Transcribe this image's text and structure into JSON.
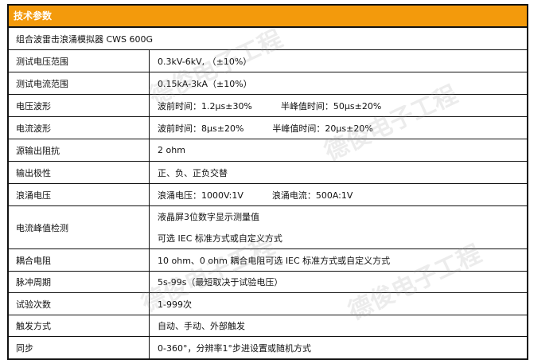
{
  "header": {
    "title": "技术参数"
  },
  "product": "组合波雷击浪涌模拟器 CWS 600G",
  "rows": [
    {
      "label": "测试电压范围",
      "value": "0.3kV-6kV, （±10%）"
    },
    {
      "label": "测试电流范围",
      "value": "0.15kA-3kA（±10%）"
    },
    {
      "label": "电压波形",
      "value": "波前时间：1.2μs±30%",
      "value2": "半峰值时间：50μs±20%"
    },
    {
      "label": "电流波形",
      "value": "波前时间：8μs±20%",
      "value2": "半峰值时间：20μs±20%"
    },
    {
      "label": "源输出阻抗",
      "value": "2 ohm"
    },
    {
      "label": "输出极性",
      "value": "正、负、正负交替"
    },
    {
      "label": "浪涌电压",
      "value": "浪涌电压：1000V:1V",
      "value2": "浪涌电流：500A:1V"
    },
    {
      "label": "电流峰值检测",
      "value": "液晶屏3位数字显示测量值",
      "value2": "可选 IEC 标准方式或自定义方式"
    },
    {
      "label": "耦合电阻",
      "value": "10 ohm、0 ohm 耦合电阻可选 IEC 标准方式或自定义方式"
    },
    {
      "label": "脉冲周期",
      "value": "5s-99s（最短取决于试验电压）"
    },
    {
      "label": "试验次数",
      "value": "1-999次"
    },
    {
      "label": "触发方式",
      "value": "自动、手动、外部触发"
    },
    {
      "label": "同步",
      "value": "0-360°，分辨率1°步进设置或随机方式"
    }
  ],
  "watermark": "德俊电子工程 DEJUN ELECTRONIC ENGINEERING",
  "colors": {
    "header": "#f39a0c"
  }
}
